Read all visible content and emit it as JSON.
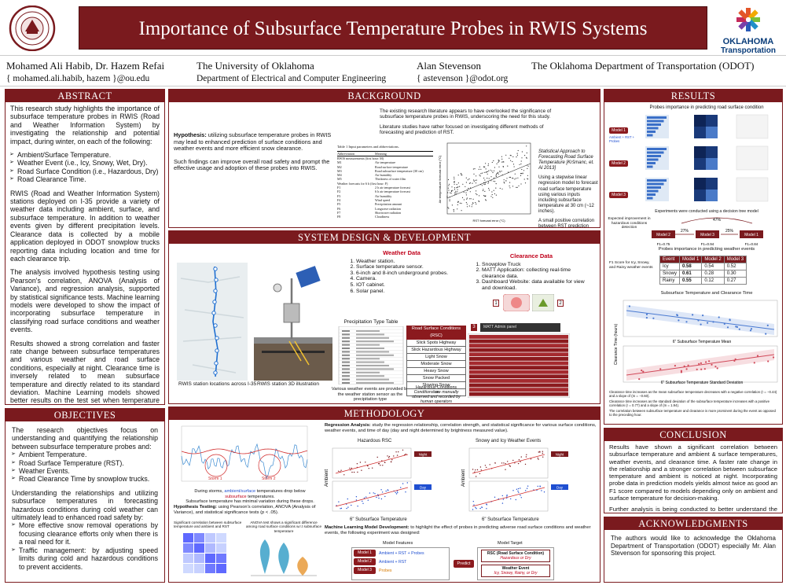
{
  "title": "Importance of Subsurface Temperature Probes in RWIS Systems",
  "seal_text": "THE UNIVERSITY OF OKLAHOMA",
  "logo": {
    "brand1": "OKLAHOMA",
    "brand2": "Transportation"
  },
  "authors": {
    "a1_name": "Mohamed Ali Habib, Dr. Hazem Refai",
    "a1_email": "{ mohamed.ali.habib, hazem }@ou.edu",
    "a2_name": "The University of Oklahoma",
    "a2_dept": "Department of Electrical and Computer Engineering",
    "a3_name": "Alan Stevenson",
    "a3_email": "{ astevenson }@odot.org",
    "a4_name": "The Oklahoma Department of Transportation (ODOT)"
  },
  "abstract": {
    "heading": "ABSTRACT",
    "p1": "This research study highlights the importance of subsurface temperature probes in RWIS (Road and Weather Information System) by investigating the relationship and potential impact, during winter, on each of the following:",
    "items": [
      "Ambient/Surface Temperature.",
      "Weather Event (i.e., Icy, Snowy, Wet, Dry).",
      "Road Surface Condition (i.e., Hazardous, Dry)",
      "Road Clearance Time."
    ],
    "p2": "RWIS (Road and Weather Information System) stations deployed on I-35 provide a variety of weather data including ambient, surface, and subsurface temperature. In addition to weather events given by different precipitation levels. Clearance data is collected by a mobile application deployed in ODOT snowplow trucks reporting data including location and time for each clearance trip.",
    "p3": "The analysis involved hypothesis testing using Pearson's correlation, ANOVA (Analysis of Variance), and regression analysis, supported by statistical significance tests. Machine learning models were developed to show the impact of incorporating subsurface temperature in classifying road surface conditions and weather events.",
    "p4": "Results showed a strong correlation and faster rate change between subsurface temperatures and various weather and road surface conditions, especially at night. Clearance time is inversely related to mean subsurface temperature and directly related to its standard deviation. Machine Learning models showed better results on the test set when temperature probe data were included as features."
  },
  "objectives": {
    "heading": "OBJECTIVES",
    "p1": "The research objectives focus on understanding and quantifying the relationship between subsurface temperature probes and:",
    "items": [
      "Ambient Temperature.",
      "Road Surface Temperature (RST).",
      "Weather Events.",
      "Road Clearance Time by snowplow trucks."
    ],
    "p2": "Understanding the relationships and utilizing subsurface temperatures in forecasting hazardous conditions during cold weather can ultimately lead to enhanced road safety by:",
    "items2": [
      "More effective snow removal operations by focusing clearance efforts only when there is a real need for it.",
      "Traffic management: by adjusting speed limits during cold and hazardous conditions to prevent accidents."
    ]
  },
  "background": {
    "heading": "BACKGROUND",
    "hyp_label": "Hypothesis:",
    "hyp": " utilizing subsurface temperature probes in RWIS may lead to enhanced prediction of surface conditions and weather events and more efficient snow clearance.",
    "p2": "Such findings can improve overall road safety and prompt the effective usage and adoption of these probes into RWIS.",
    "r1": "The existing research literature appears to have overlooked the significance of subsurface temperature probes in RWIS, underscoring the need for this study.",
    "r2": "Literature studies have rather focused on investigating different methods of forecasting and prediction of RST.",
    "stat_title": "Statistical Approach to Forecasting Road Surface Temperature [Kršmanc, et. Al 2013]",
    "stat_p1": "Using a stepwise linear regression model to forecast road surface temperature using various inputs including subsurface temperature at 30 cm (~12 inches).",
    "stat_p2": "A small positive correlation between RST prediction errors by the model was reported.",
    "table_title": "Table 1  Input parameters and abbreviations.",
    "table_head": [
      "Abbreviation",
      "Meaning"
    ],
    "table_rows": [
      [
        "RWIS measurements (first hour: M)",
        ""
      ],
      [
        "M1",
        "Air temperature"
      ],
      [
        "M2",
        "Road surface temperature"
      ],
      [
        "M3",
        "Road subsurface temperature (30 cm)"
      ],
      [
        "M4",
        "Air humidity"
      ],
      [
        "M5",
        "Thickness of water film"
      ],
      [
        "Weather forecasts for 6 h (first hour: F)",
        ""
      ],
      [
        "F1",
        "2 h air temperature forecast"
      ],
      [
        "F2",
        "6 h air temperature forecast"
      ],
      [
        "F3",
        "Air humidity"
      ],
      [
        "F4",
        "Wind speed"
      ],
      [
        "F5",
        "Precipitation amount"
      ],
      [
        "F6",
        "Longwave radiation"
      ],
      [
        "F7",
        "Shortwave radiation"
      ],
      [
        "F8",
        "Cloudiness"
      ]
    ],
    "scatter_x": "RST forecast error (°C)",
    "scatter_y": "Air temperature forecast error (°C)"
  },
  "system": {
    "heading": "SYSTEM DESIGN & DEVELOPMENT",
    "weather_title": "Weather Data",
    "weather_items": [
      "Weather station.",
      "Surface temperature sensor.",
      "6-inch and 8-inch underground probes.",
      "Camera.",
      "IOT cabinet.",
      "Solar panel."
    ],
    "clear_title": "Clearance Data",
    "clear_items": [
      "Snowplow Truck",
      "MATT Application: collecting real-time clearance data.",
      "Dashboard Website: data available for view and download."
    ],
    "map_cap": "RWIS station locations across I-35",
    "station_cap": "RWIS station 3D illustration",
    "precip_title": "Precipitation Type Table",
    "precip_cap": "Various weather events are provided by the weather station sensor as the precipitation type",
    "rsc_title": "Road Surface Conditions (RSC)",
    "rsc_items": [
      "Slick Spots Highway",
      "Slick Hazardous Highway",
      "Light Snow",
      "Moderate Snow",
      "Heavy Snow",
      "Snow Packed",
      "Slowing Snow",
      "Ice"
    ],
    "rsc_cap1": "Hazardous Conditions",
    "rsc_cap2": "Conditions are manually observed and recorded by human operators",
    "matt_title": "MATT Admin panel",
    "num": [
      "1",
      "2",
      "3"
    ]
  },
  "methodology": {
    "heading": "METHODOLOGY",
    "storm_cap_a": "During storms, ",
    "storm_cap_b": "ambient/surface",
    "storm_cap_c": " temperatures drop below ",
    "storm_cap_d": "subsurface",
    "storm_cap_e": " temperatures.",
    "storm_cap2": "Subsurface temperature has minimal variation during these drops.",
    "storm1": "Storm 1",
    "storm2": "Storm 2",
    "hyp_label": "Hypothesis Testing:",
    "hyp": " using Pearson's correlation, ANOVA (Analysis of Variance), and statistical significance tests (p < .05).",
    "corr_title": "Significant correlation between subsurface temperature and ambient and RST",
    "anova_title": "ANOVA test shows a significant difference among road surface conditions w.r.t subsurface temperature",
    "reg_label": "Regression Analysis:",
    "reg": " study the regression relationship, correlation strength, and statistical significance for various surface conditions, weather events, and time of day (day and night determined by brightness measured value).",
    "haz_title": "Hazardous RSC",
    "snow_title": "Snowy and Icy Weather Events",
    "night": "Night",
    "day": "Day",
    "ambient": "Ambient",
    "xlabel": "6\" Subsurface Temperature",
    "ml_label": "Machine Learning Model Development:",
    "ml": " to highlight the effect of probes in predicting adverse road surface conditions and weather events, the following experiment was designed:",
    "model_features": "Model Features",
    "model_target": "Model Target",
    "m1": "Model 1",
    "m2": "Model 2",
    "m3": "Model 3",
    "f1": "Ambient + RST + Probes",
    "f2": "Ambient + RST",
    "f3": "Probes",
    "predict": "Predict",
    "t1": "RSC (Road Surface Condition)",
    "t1b": "Hazardous or Dry",
    "t2": "Weather Event",
    "t2b": "Icy, Snowy, Rainy, or Dry"
  },
  "results": {
    "heading": "RESULTS",
    "probes_title": "Probes importance in predicting road surface condition",
    "m1": "Model 1",
    "m2": "Model 2",
    "m3": "Model 3",
    "feat": "Ambient + RST + Probes",
    "dt_title": "Experiments were conducted using a decision tree model",
    "exp_label": "Expected improvement in hazardous conditions detection",
    "f1a": "F1=0.84",
    "f1b": "F1=0.75",
    "f1c": "F1=0.94",
    "p27": "27%",
    "p47": "47%",
    "p25": "25%",
    "weather_title": "Probes importance in predicting weather events",
    "f1_label": "F1 Score for Icy, Snowy, and Rainy weather events",
    "table_head": [
      "Event",
      "Model 1",
      "Model 2",
      "Model 3"
    ],
    "table_rows": [
      [
        "Icy",
        "0.58",
        "0.54",
        "0.52"
      ],
      [
        "Snowy",
        "0.61",
        "0.28",
        "0.30"
      ],
      [
        "Rainy",
        "0.55",
        "0.12",
        "0.27"
      ]
    ],
    "clear_title": "Subsurface Temperature and Clearance Time",
    "clear_y": "Clearance Time (hours)",
    "clear_x1": "6\" Subsurface Temperature Mean",
    "clear_x2": "6\" Subsurface Temperature Standard Deviation",
    "b1": "Clearance time increases as the mean subsurface temperature decreases with a negative correlation (r = −0.44) and a slope of (m = −0.60).",
    "b2": "Clearance time increases as the standard deviation of the subsurface temperature increases with a positive correlation (r = 0.77) and a slope of (m = 1.94).",
    "b3": "The correlation between subsurface temperature and clearance is more prominent during the event as opposed to the preceding hour."
  },
  "conclusion": {
    "heading": "CONCLUSION",
    "p1": "Results have shown a significant correlation between subsurface temperature and ambient & surface temperatures, weather events, and clearance time. A faster rate change in the relationship and a stronger correlation between subsurface temperature and ambient is noticed at night. Incorporating probe data in prediction models yields almost twice as good an F1 score compared to models depending only on ambient and surface temperature for decision-making.",
    "p2": "Further analysis is being conducted to better understand the relationships and derive more insightful conclusions."
  },
  "ack": {
    "heading": "ACKNOWLEDGMENTS",
    "p": "The authors would like to acknowledge the Oklahoma Department of Transportation (ODOT) especially Mr. Alan Stevenson for sponsoring this project."
  },
  "colors": {
    "maroon": "#7a1a1e",
    "blue": "#1f4fd1",
    "red": "#c0001a"
  }
}
